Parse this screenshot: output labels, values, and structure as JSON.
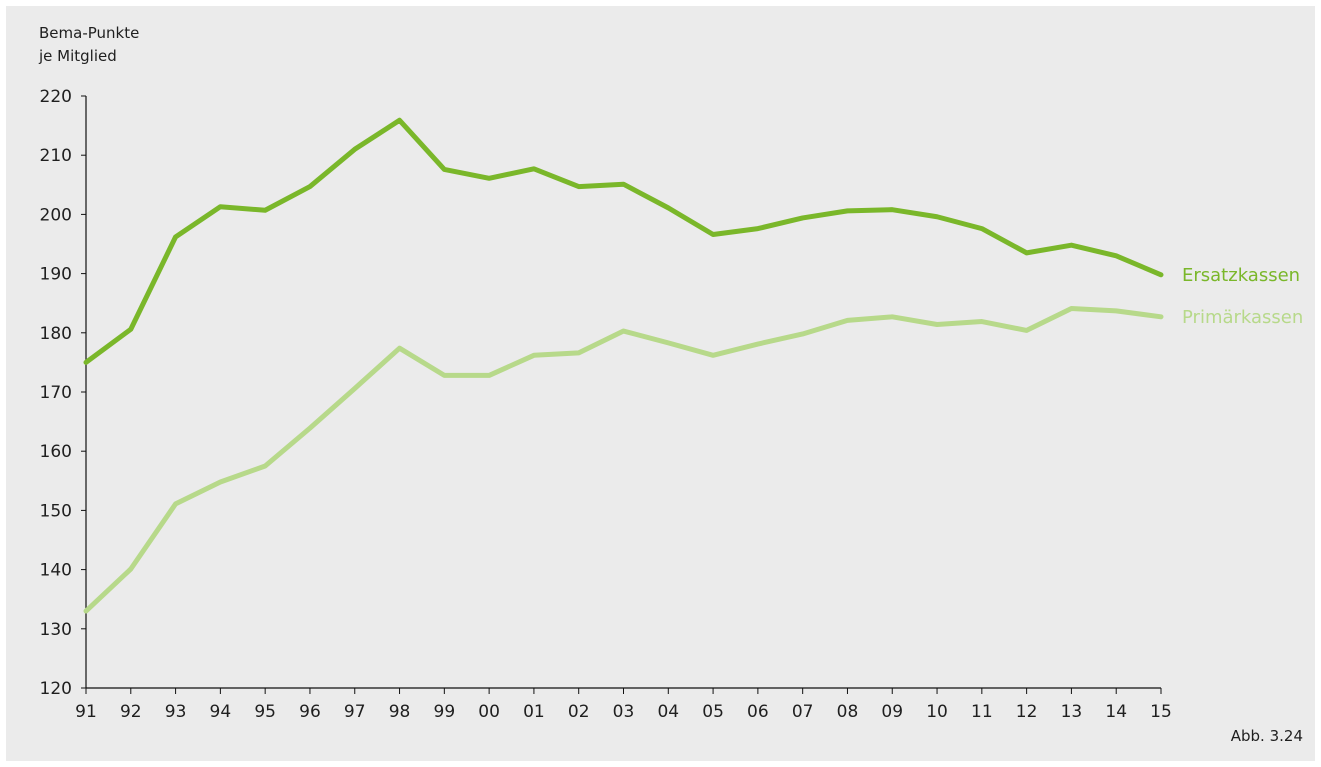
{
  "chart_data": {
    "type": "line",
    "title": "",
    "ylabel_lines": [
      "Bema-Punkte",
      "je Mitglied"
    ],
    "xlabel": "",
    "x": [
      "91",
      "92",
      "93",
      "94",
      "95",
      "96",
      "97",
      "98",
      "99",
      "00",
      "01",
      "02",
      "03",
      "04",
      "05",
      "06",
      "07",
      "08",
      "09",
      "10",
      "11",
      "12",
      "13",
      "14",
      "15"
    ],
    "yticks": [
      120,
      130,
      140,
      150,
      160,
      170,
      180,
      190,
      200,
      210,
      220
    ],
    "ylim": [
      120,
      220
    ],
    "grid": false,
    "legend": "right-side end labels",
    "series": [
      {
        "name": "Ersatzkassen",
        "color": "#7ab72a",
        "values": [
          175.0,
          180.6,
          196.2,
          201.3,
          200.7,
          204.7,
          211.0,
          215.9,
          207.6,
          206.1,
          207.7,
          204.7,
          205.1,
          201.1,
          196.6,
          197.6,
          199.4,
          200.6,
          200.8,
          199.6,
          197.6,
          193.5,
          194.8,
          193.0,
          189.8
        ]
      },
      {
        "name": "Primärkassen",
        "color": "#b7d98a",
        "values": [
          133.0,
          140.1,
          151.1,
          154.8,
          157.5,
          163.9,
          170.6,
          177.4,
          172.8,
          172.8,
          176.2,
          176.6,
          180.3,
          178.3,
          176.2,
          178.1,
          179.8,
          182.1,
          182.7,
          181.4,
          181.9,
          180.4,
          184.1,
          183.7,
          182.7
        ]
      }
    ]
  },
  "footer": {
    "figure_label": "Abb. 3.24"
  }
}
